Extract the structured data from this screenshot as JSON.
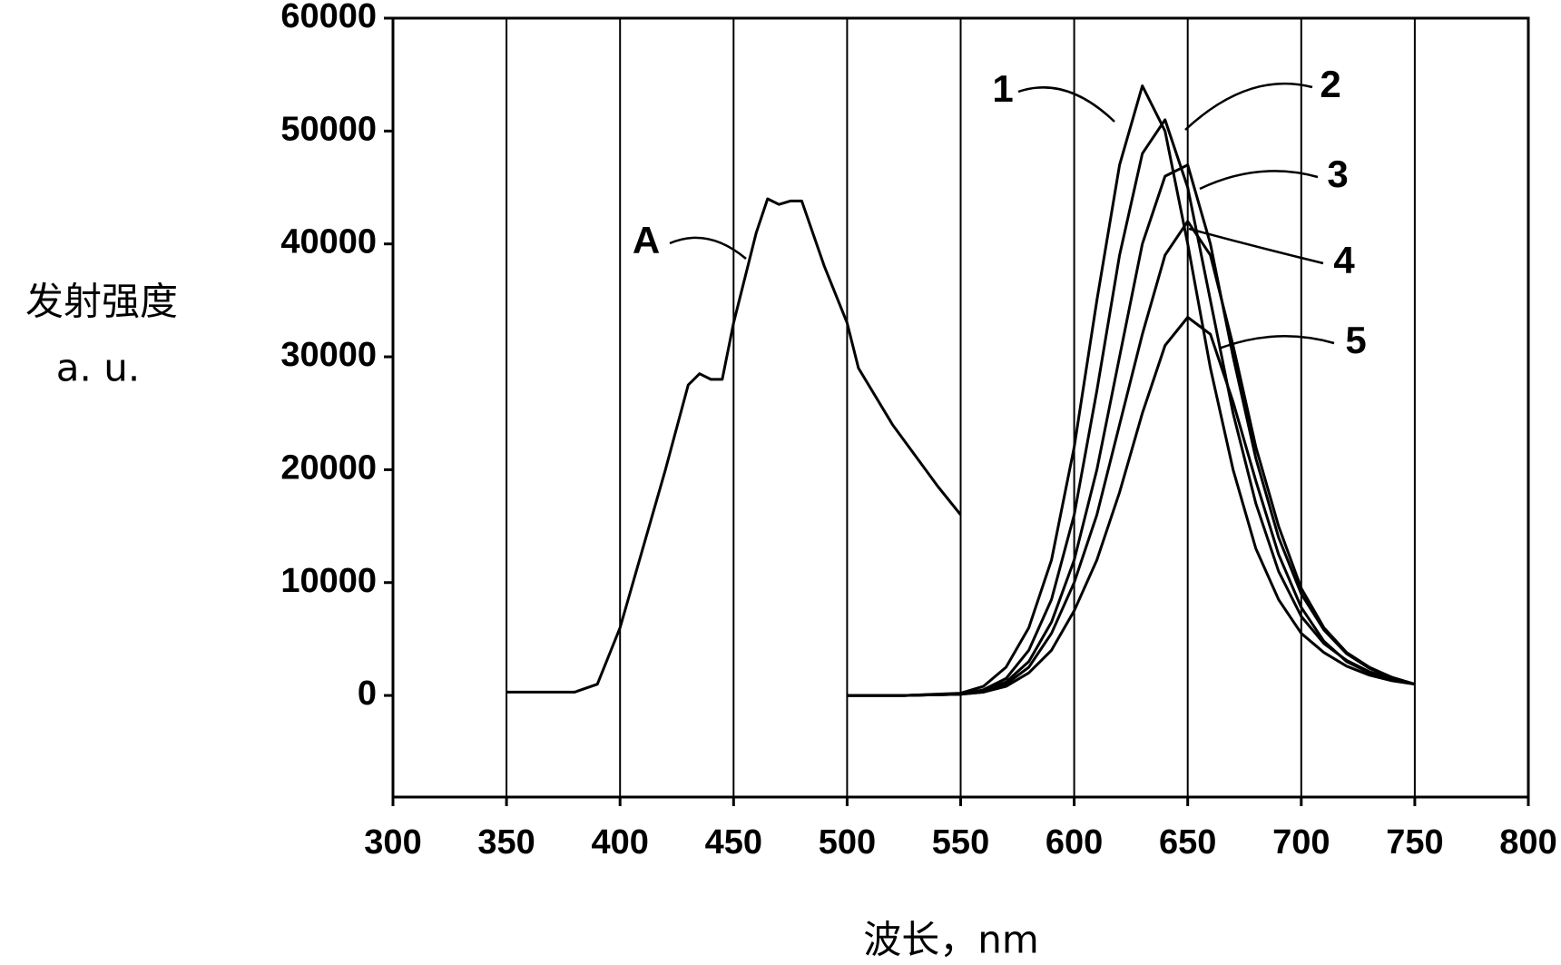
{
  "chart_data": {
    "type": "line",
    "y_label_lines": [
      "发射强度",
      "a. u."
    ],
    "x_label": "波长，nm",
    "xlim": [
      300,
      800
    ],
    "ylim": [
      -9000,
      60000
    ],
    "xticks": [
      300,
      350,
      400,
      450,
      500,
      550,
      600,
      650,
      700,
      750,
      800
    ],
    "yticks": [
      0,
      10000,
      20000,
      30000,
      40000,
      50000,
      60000
    ],
    "xgrid": true,
    "series": [
      {
        "name": "A",
        "color": "#000000",
        "x": [
          350,
          380,
          390,
          400,
          410,
          420,
          430,
          435,
          440,
          445,
          450,
          460,
          465,
          470,
          475,
          480,
          490,
          500,
          505,
          520,
          540,
          550
        ],
        "values": [
          300,
          300,
          1000,
          6000,
          13000,
          20000,
          27500,
          28500,
          28000,
          28000,
          33000,
          41000,
          44000,
          43500,
          43800,
          43800,
          38000,
          33000,
          29000,
          24000,
          18500,
          16000
        ]
      },
      {
        "name": "1",
        "color": "#000000",
        "x": [
          500,
          525,
          550,
          560,
          570,
          580,
          590,
          600,
          610,
          620,
          630,
          640,
          650,
          660,
          670,
          680,
          690,
          700,
          710,
          720,
          730,
          740,
          750
        ],
        "values": [
          0,
          0,
          200,
          800,
          2500,
          6000,
          12000,
          22000,
          35000,
          47000,
          54000,
          50000,
          40000,
          29000,
          20000,
          13000,
          8500,
          5500,
          3800,
          2600,
          1800,
          1300,
          1000
        ]
      },
      {
        "name": "2",
        "color": "#000000",
        "x": [
          500,
          525,
          550,
          560,
          570,
          580,
          590,
          600,
          610,
          620,
          630,
          640,
          650,
          660,
          670,
          680,
          690,
          700,
          710,
          720,
          730,
          740,
          750
        ],
        "values": [
          0,
          0,
          100,
          500,
          1500,
          4000,
          8500,
          16000,
          27000,
          39000,
          48000,
          51000,
          45000,
          35000,
          25000,
          17000,
          11000,
          7000,
          4600,
          3100,
          2100,
          1500,
          1000
        ]
      },
      {
        "name": "3",
        "color": "#000000",
        "x": [
          500,
          525,
          550,
          560,
          570,
          580,
          590,
          600,
          610,
          620,
          630,
          640,
          650,
          660,
          670,
          680,
          690,
          700,
          710,
          720,
          730,
          740,
          750
        ],
        "values": [
          0,
          0,
          100,
          400,
          1200,
          3000,
          6500,
          12000,
          20000,
          30000,
          40000,
          46000,
          47000,
          40000,
          30000,
          21000,
          14000,
          9000,
          5800,
          3700,
          2400,
          1600,
          1000
        ]
      },
      {
        "name": "4",
        "color": "#000000",
        "x": [
          500,
          525,
          550,
          560,
          570,
          580,
          590,
          600,
          610,
          620,
          630,
          640,
          650,
          660,
          670,
          680,
          690,
          700,
          710,
          720,
          730,
          740,
          750
        ],
        "values": [
          0,
          0,
          100,
          300,
          1000,
          2500,
          5500,
          10000,
          16000,
          24000,
          32000,
          39000,
          42000,
          39000,
          31000,
          22000,
          15000,
          9500,
          6000,
          3800,
          2500,
          1600,
          1000
        ]
      },
      {
        "name": "5",
        "color": "#000000",
        "x": [
          500,
          525,
          550,
          560,
          570,
          580,
          590,
          600,
          610,
          620,
          630,
          640,
          650,
          660,
          670,
          680,
          690,
          700,
          710,
          720,
          730,
          740,
          750
        ],
        "values": [
          0,
          0,
          100,
          300,
          800,
          2000,
          4000,
          7500,
          12000,
          18000,
          25000,
          31000,
          33500,
          32000,
          26000,
          19000,
          12500,
          7800,
          4800,
          3000,
          2000,
          1400,
          1000
        ]
      }
    ]
  }
}
